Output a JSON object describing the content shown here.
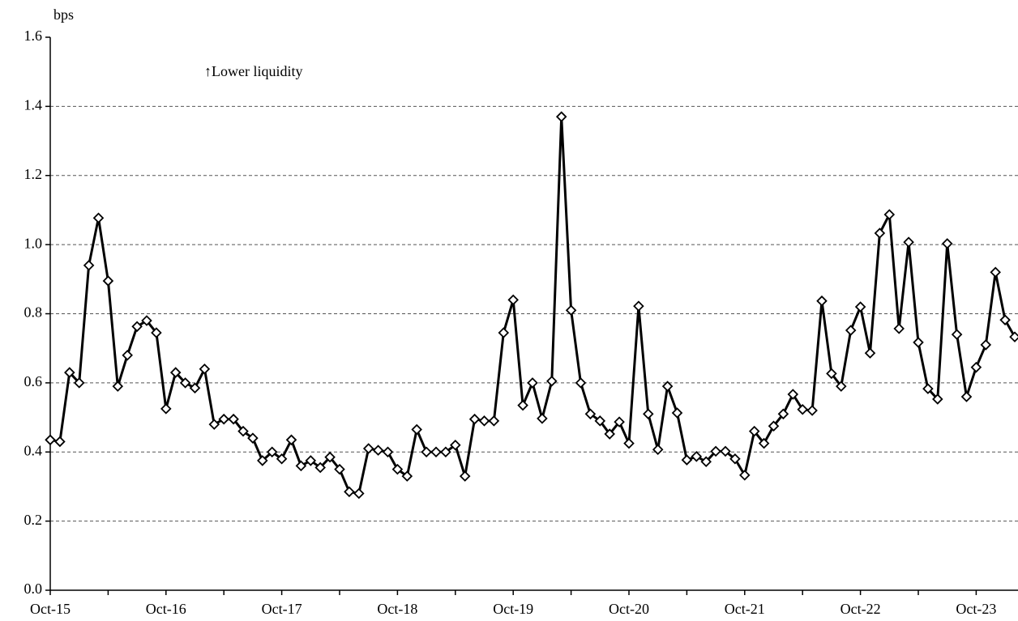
{
  "chart_data": {
    "type": "line",
    "y_label": "bps",
    "annotation": "↑Lower liquidity",
    "categories": [
      "Oct-15",
      null,
      null,
      null,
      null,
      null,
      null,
      null,
      null,
      null,
      null,
      null,
      "Oct-16",
      null,
      null,
      null,
      null,
      null,
      null,
      null,
      null,
      null,
      null,
      null,
      "Oct-17",
      null,
      null,
      null,
      null,
      null,
      null,
      null,
      null,
      null,
      null,
      null,
      "Oct-18",
      null,
      null,
      null,
      null,
      null,
      null,
      null,
      null,
      null,
      null,
      null,
      "Oct-19",
      null,
      null,
      null,
      null,
      null,
      null,
      null,
      null,
      null,
      null,
      null,
      "Oct-20",
      null,
      null,
      null,
      null,
      null,
      null,
      null,
      null,
      null,
      null,
      null,
      "Oct-21",
      null,
      null,
      null,
      null,
      null,
      null,
      null,
      null,
      null,
      null,
      null,
      "Oct-22",
      null,
      null,
      null,
      null,
      null,
      null,
      null,
      null,
      null,
      null,
      null,
      "Oct-23",
      null,
      null,
      null,
      null
    ],
    "values": [
      0.435,
      0.43,
      0.63,
      0.6,
      0.94,
      1.077,
      0.895,
      0.59,
      0.68,
      0.763,
      0.78,
      0.745,
      0.525,
      0.63,
      0.6,
      0.585,
      0.64,
      0.48,
      0.495,
      0.495,
      0.46,
      0.44,
      0.375,
      0.4,
      0.38,
      0.435,
      0.36,
      0.375,
      0.355,
      0.385,
      0.35,
      0.285,
      0.28,
      0.41,
      0.405,
      0.4,
      0.35,
      0.33,
      0.465,
      0.4,
      0.4,
      0.4,
      0.42,
      0.33,
      0.495,
      0.49,
      0.49,
      0.745,
      0.84,
      0.535,
      0.6,
      0.497,
      0.605,
      1.37,
      0.81,
      0.6,
      0.51,
      0.49,
      0.452,
      0.487,
      0.425,
      0.822,
      0.51,
      0.407,
      0.59,
      0.513,
      0.377,
      0.387,
      0.372,
      0.402,
      0.402,
      0.38,
      0.333,
      0.46,
      0.425,
      0.475,
      0.51,
      0.567,
      0.523,
      0.52,
      0.837,
      0.627,
      0.59,
      0.752,
      0.82,
      0.686,
      1.033,
      1.087,
      0.757,
      1.007,
      0.717,
      0.583,
      0.553,
      1.003,
      0.74,
      0.56,
      0.645,
      0.71,
      0.92,
      0.782,
      0.733
    ],
    "color": "#000000",
    "ylim": [
      0,
      1.6
    ],
    "yticks": [
      {
        "value": 0,
        "label": "0.0"
      },
      0.2,
      0.4,
      0.6,
      0.8,
      {
        "value": 1,
        "label": "1.0"
      },
      1.2,
      1.4,
      1.6
    ],
    "grid": true
  }
}
